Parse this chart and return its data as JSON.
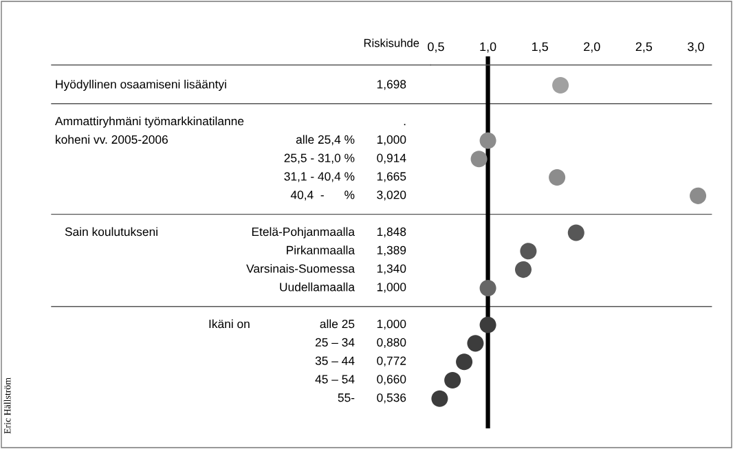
{
  "chart_data": {
    "type": "scatter",
    "orientation": "horizontal",
    "categories": [
      null,
      null,
      null,
      "alle 25,4 %",
      "25,5 - 31,0 %",
      "31,1 - 40,4 %",
      "40,4  -      %",
      null,
      "Etelä-Pohjanmaalla",
      "Pirkanmaalla",
      "Varsinais-Suomessa",
      "Uudellamaalla",
      null,
      "alle 25",
      "25 – 34",
      "35 – 44",
      "45 – 54",
      "55-"
    ],
    "values": [
      1.698,
      null,
      null,
      1.0,
      0.914,
      1.665,
      3.02,
      null,
      1.848,
      1.389,
      1.34,
      1.0,
      null,
      1.0,
      0.88,
      0.772,
      0.66,
      0.536
    ],
    "value_labels": [
      "1,698",
      null,
      ".",
      "1,000",
      "0,914",
      "1,665",
      "3,020",
      null,
      "1,848",
      "1,389",
      "1,340",
      "1,000",
      null,
      "1,000",
      "0,880",
      "0,772",
      "0,660",
      "0,536"
    ],
    "colors": [
      "#a0a0a0",
      null,
      null,
      "#8c8c8c",
      "#8c8c8c",
      "#8c8c8c",
      "#8c8c8c",
      null,
      "#575757",
      "#575757",
      "#575757",
      "#666666",
      null,
      "#3c3c3c",
      "#3c3c3c",
      "#3c3c3c",
      "#3c3c3c",
      "#3c3c3c"
    ],
    "xlim": [
      0.45,
      3.15
    ],
    "xticks": [
      {
        "value": 0.5,
        "label": "0,5"
      },
      {
        "value": 1.0,
        "label": "1,0"
      },
      {
        "value": 1.5,
        "label": "1,5"
      },
      {
        "value": 2.0,
        "label": "2,0"
      },
      {
        "value": 2.5,
        "label": "2,5"
      },
      {
        "value": 3.0,
        "label": "3,0"
      }
    ],
    "xlabel": "Riskisuhde",
    "annotations": [
      "Hyödyllinen osaamiseni lisääntyi",
      "Ammattiryhmäni työmarkkinatilanne",
      "koheni vv. 2005-2006",
      "Sain koulutukseni",
      "Ikäni on",
      "Eric Hällström"
    ],
    "ref_lines": [
      {
        "axis": "x",
        "value": 1.0,
        "color": "#000000"
      }
    ],
    "marker": "circle",
    "grid": "y",
    "tick_labels": "x"
  }
}
